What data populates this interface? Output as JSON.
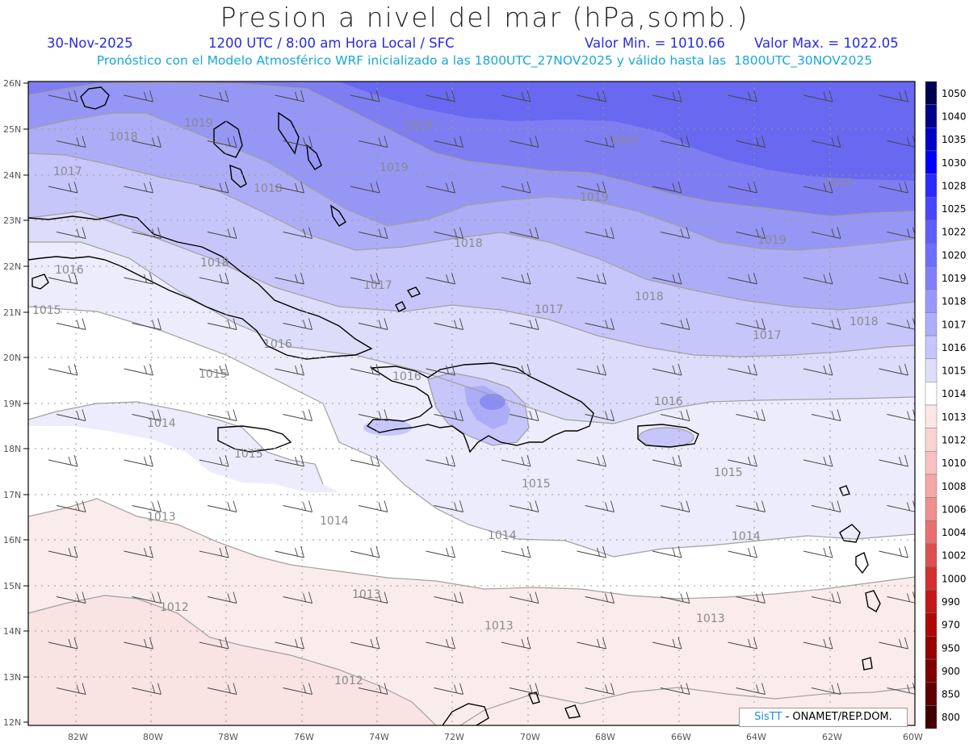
{
  "header": {
    "title": "Presion a nivel del mar (hPa,somb.)",
    "date": "30-Nov-2025",
    "time": "1200 UTC / 8:00 am Hora Local / SFC",
    "valmin": "Valor Min. = 1010.66",
    "valmax": "Valor Max. = 1022.05",
    "forecast": "Pronóstico con el Modelo Atmosférico WRF inicializado a las 1800UTC_27NOV2025 y válido hasta las  1800UTC_30NOV2025"
  },
  "axes": {
    "lat_labels": [
      "26N",
      "25N",
      "24N",
      "23N",
      "22N",
      "21N",
      "20N",
      "19N",
      "18N",
      "17N",
      "16N",
      "15N",
      "14N",
      "13N",
      "12N"
    ],
    "lon_labels": [
      "82W",
      "80W",
      "78W",
      "76W",
      "74W",
      "72W",
      "70W",
      "68W",
      "66W",
      "64W",
      "62W",
      "60W"
    ]
  },
  "contour_labels": [
    {
      "text": "1018"
    },
    {
      "text": "1019"
    },
    {
      "text": "1020"
    },
    {
      "text": "1017"
    },
    {
      "text": "1019"
    },
    {
      "text": "1018"
    },
    {
      "text": "1020"
    },
    {
      "text": "1019"
    },
    {
      "text": "1020"
    },
    {
      "text": "1019"
    },
    {
      "text": "1018"
    },
    {
      "text": "1016"
    },
    {
      "text": "1018"
    },
    {
      "text": "1017"
    },
    {
      "text": "1017"
    },
    {
      "text": "1018"
    },
    {
      "text": "1015"
    },
    {
      "text": "1017"
    },
    {
      "text": "1018"
    },
    {
      "text": "1016"
    },
    {
      "text": "1015"
    },
    {
      "text": "1016"
    },
    {
      "text": "1014"
    },
    {
      "text": "1016"
    },
    {
      "text": "1015"
    },
    {
      "text": "1015"
    },
    {
      "text": "1015"
    },
    {
      "text": "1013"
    },
    {
      "text": "1014"
    },
    {
      "text": "1014"
    },
    {
      "text": "1014"
    },
    {
      "text": "1012"
    },
    {
      "text": "1013"
    },
    {
      "text": "1013"
    },
    {
      "text": "1013"
    },
    {
      "text": "1012"
    }
  ],
  "colorbar": {
    "levels": [
      "1050",
      "1040",
      "1035",
      "1030",
      "1028",
      "1025",
      "1022",
      "1020",
      "1019",
      "1018",
      "1017",
      "1016",
      "1015",
      "1014",
      "1013",
      "1012",
      "1010",
      "1008",
      "1006",
      "1004",
      "1002",
      "1000",
      "990",
      "970",
      "950",
      "900",
      "850",
      "800"
    ],
    "colors": [
      "#000050",
      "#00008c",
      "#0000c8",
      "#0000ff",
      "#2a2aff",
      "#4646ff",
      "#5e5eff",
      "#6e6eff",
      "#8080ff",
      "#9898ff",
      "#aeaeff",
      "#c6c6ff",
      "#dedefb",
      "#ffffff",
      "#fce6e6",
      "#fbd3d3",
      "#f8c0c0",
      "#f4a8a8",
      "#ee8e8e",
      "#e67070",
      "#dc5050",
      "#d03030",
      "#c01818",
      "#ae0808",
      "#960000",
      "#7c0000",
      "#600000",
      "#400000"
    ]
  },
  "credit": {
    "brand": "SisTT",
    "text": " - ONAMET/REP.DOM."
  }
}
